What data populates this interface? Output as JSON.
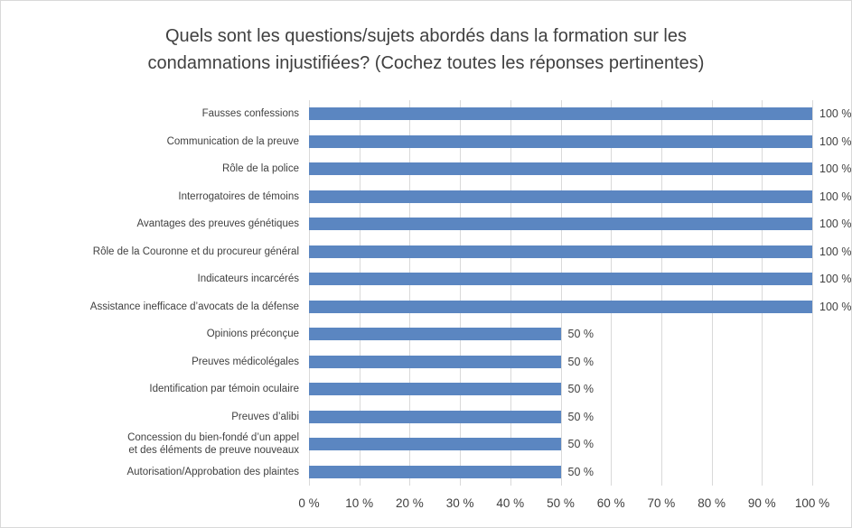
{
  "title": {
    "text": "Quels sont les questions/sujets abordés dans la formation sur les\ncondamnations injustifiées? (Cochez toutes les réponses pertinentes)"
  },
  "colors": {
    "bar": "#5b86c1",
    "gridline": "#d9d9d9",
    "text": "#404040",
    "border": "#d9d9d9",
    "background": "#ffffff"
  },
  "chart_data": {
    "type": "bar",
    "orientation": "horizontal",
    "title": "Quels sont les questions/sujets abordés dans la formation sur les condamnations injustifiées? (Cochez toutes les réponses pertinentes)",
    "categories": [
      "Fausses confessions",
      "Communication de la preuve",
      "Rôle de la police",
      "Interrogatoires de témoins",
      "Avantages des preuves génétiques",
      "Rôle de la Couronne et du procureur général",
      "Indicateurs incarcérés",
      "Assistance inefficace d’avocats de la défense",
      "Opinions préconçue",
      "Preuves médicolégales",
      "Identification par témoin oculaire",
      "Preuves d’alibi",
      "Concession du bien-fondé d’un appel\net des éléments de preuve nouveaux",
      "Autorisation/Approbation des plaintes"
    ],
    "values": [
      100,
      100,
      100,
      100,
      100,
      100,
      100,
      100,
      50,
      50,
      50,
      50,
      50,
      50
    ],
    "value_labels": [
      "100 %",
      "100 %",
      "100 %",
      "100 %",
      "100 %",
      "100 %",
      "100 %",
      "100 %",
      "50 %",
      "50 %",
      "50 %",
      "50 %",
      "50 %",
      "50 %"
    ],
    "xlabel": "",
    "ylabel": "",
    "xlim": [
      0,
      100
    ],
    "x_tick_step": 10,
    "x_ticks": [
      "0 %",
      "10 %",
      "20 %",
      "30 %",
      "40 %",
      "50 %",
      "60 %",
      "70 %",
      "80 %",
      "90 %",
      "100 %"
    ],
    "grid": "vertical",
    "legend": "none"
  }
}
